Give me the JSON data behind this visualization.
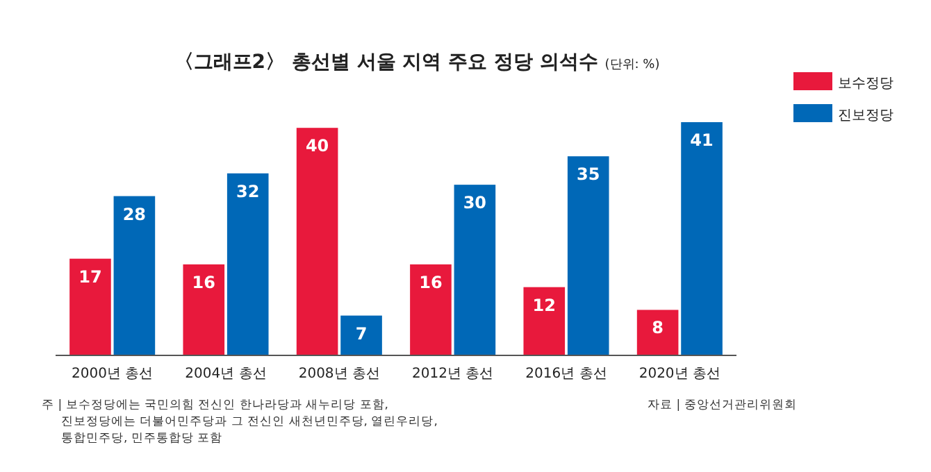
{
  "chart_data": {
    "type": "bar",
    "title": "〈그래프2〉 총선별 서울 지역 주요 정당 의석수",
    "subtitle": "(단위: %)",
    "categories": [
      "2000년 총선",
      "2004년 총선",
      "2008년 총선",
      "2012년 총선",
      "2016년 총선",
      "2020년 총선"
    ],
    "series": [
      {
        "name": "보수정당",
        "color": "#e8193c",
        "values": [
          17,
          16,
          40,
          16,
          12,
          8
        ]
      },
      {
        "name": "진보정당",
        "color": "#0068b7",
        "values": [
          28,
          32,
          7,
          30,
          35,
          41
        ]
      }
    ],
    "data_labels": true,
    "legend": "top right",
    "grid": false,
    "annotations": [
      "주 | 보수정당에는 국민의힘 전신인 한나라당과 새누리당 포함, 진보정당에는 더불어민주당과 그 전신인 새천년민주당, 열린우리당, 통합민주당, 민주통합당 포함",
      "자료 | 중앙선거관리위원회"
    ]
  }
}
